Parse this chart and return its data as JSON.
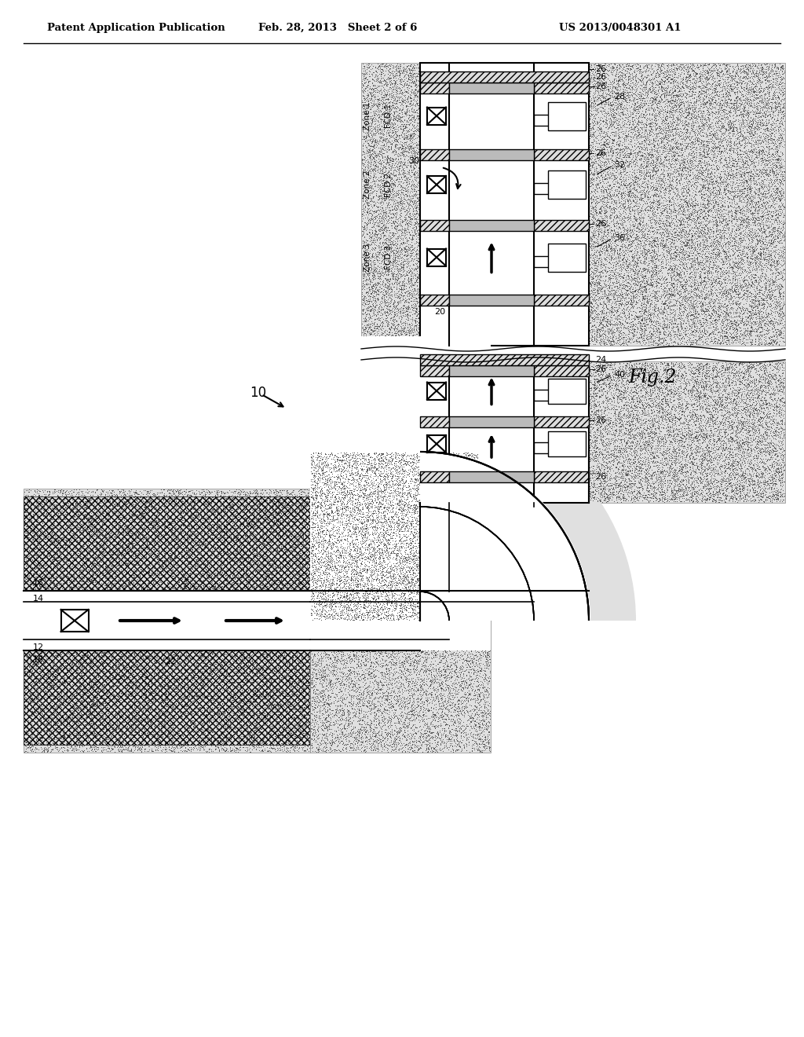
{
  "title_left": "Patent Application Publication",
  "title_center": "Feb. 28, 2013   Sheet 2 of 6",
  "title_right": "US 2013/0048301 A1",
  "fig_label": "Fig.2",
  "ref_num": "10",
  "background_color": "#ffffff",
  "text_color": "#000000"
}
